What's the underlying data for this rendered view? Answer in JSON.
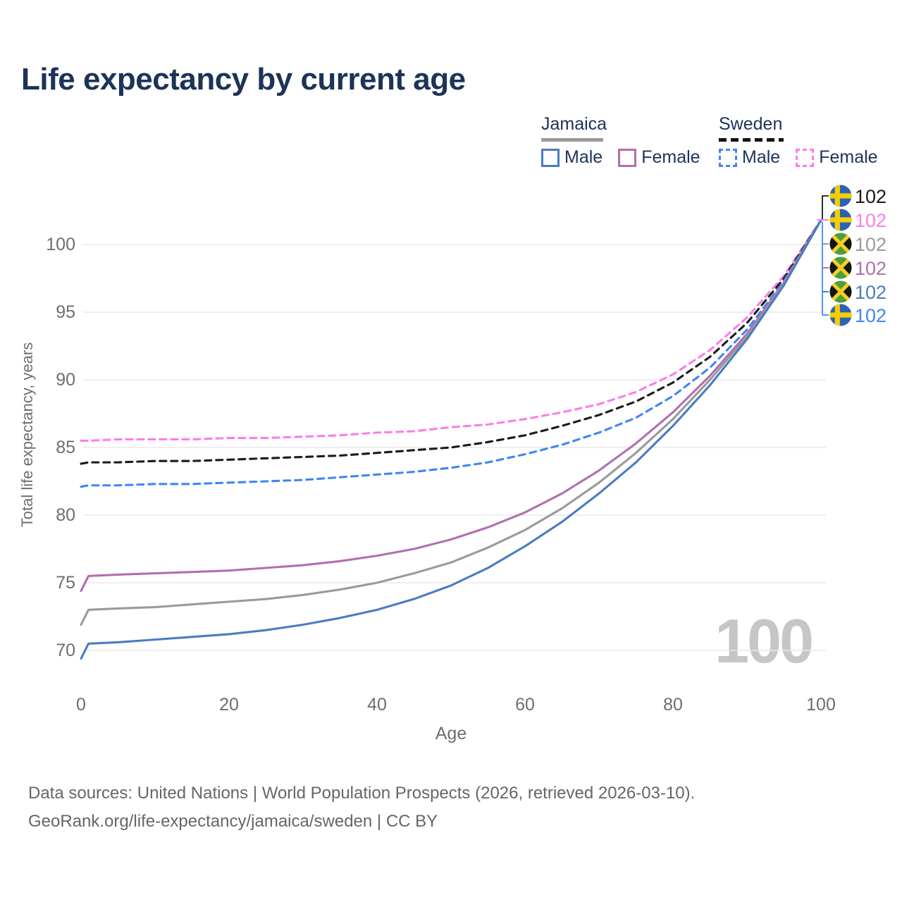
{
  "title": "Life expectancy by current age",
  "legend": {
    "jamaica": {
      "name": "Jamaica",
      "male": "Male",
      "female": "Female"
    },
    "sweden": {
      "name": "Sweden",
      "male": "Male",
      "female": "Female"
    }
  },
  "footer": {
    "line1": "Data sources: United Nations | World Population Prospects (2026, retrieved 2026-03-10).",
    "line2": "GeoRank.org/life-expectancy/jamaica/sweden | CC BY"
  },
  "colors": {
    "title_text": "#1d3357",
    "jamaica_male": "#4a7cc2",
    "jamaica_female": "#b06faf",
    "jamaica_all": "#9a9a9a",
    "sweden_male": "#3f86f5",
    "sweden_female": "#fb7de9",
    "sweden_all": "#1a1a1a",
    "grid": "#e8e8e8",
    "axis_text": "#6e6e6e",
    "watermark": "#c6c6c6",
    "footer_text": "#666666"
  },
  "chart_data": {
    "type": "line",
    "title": "Life expectancy by current age",
    "xlabel": "Age",
    "ylabel": "Total life expectancy, years",
    "xticks": [
      0,
      20,
      40,
      60,
      80,
      100
    ],
    "yticks": [
      70,
      75,
      80,
      85,
      90,
      95,
      100
    ],
    "xlim": [
      0,
      100
    ],
    "ylim": [
      67,
      103
    ],
    "grid": "horizontal-only",
    "legend_position": "top-right",
    "watermark": "100",
    "x": [
      0,
      1,
      5,
      10,
      15,
      20,
      25,
      30,
      35,
      40,
      45,
      50,
      55,
      60,
      65,
      70,
      75,
      80,
      85,
      90,
      95,
      100
    ],
    "series": [
      {
        "name": "Sweden Female",
        "country": "Sweden",
        "sex": "Female",
        "line": "dashed",
        "color": "#fb7de9",
        "values": [
          85.5,
          85.5,
          85.6,
          85.6,
          85.6,
          85.7,
          85.7,
          85.8,
          85.9,
          86.1,
          86.2,
          86.5,
          86.7,
          87.1,
          87.6,
          88.2,
          89.1,
          90.4,
          92.2,
          94.6,
          97.7,
          101.8
        ]
      },
      {
        "name": "Sweden",
        "country": "Sweden",
        "sex": "All",
        "line": "dashed",
        "color": "#1a1a1a",
        "values": [
          83.8,
          83.9,
          83.9,
          84.0,
          84.0,
          84.1,
          84.2,
          84.3,
          84.4,
          84.6,
          84.8,
          85.0,
          85.4,
          85.9,
          86.6,
          87.4,
          88.4,
          89.8,
          91.7,
          94.2,
          97.5,
          101.8
        ]
      },
      {
        "name": "Sweden Male",
        "country": "Sweden",
        "sex": "Male",
        "line": "dashed",
        "color": "#3f86f5",
        "values": [
          82.1,
          82.2,
          82.2,
          82.3,
          82.3,
          82.4,
          82.5,
          82.6,
          82.8,
          83.0,
          83.2,
          83.5,
          83.9,
          84.5,
          85.2,
          86.1,
          87.2,
          88.8,
          90.9,
          93.7,
          97.3,
          101.8
        ]
      },
      {
        "name": "Jamaica Female",
        "country": "Jamaica",
        "sex": "Female",
        "line": "solid",
        "color": "#b06faf",
        "values": [
          74.4,
          75.5,
          75.6,
          75.7,
          75.8,
          75.9,
          76.1,
          76.3,
          76.6,
          77.0,
          77.5,
          78.2,
          79.1,
          80.2,
          81.6,
          83.3,
          85.3,
          87.6,
          90.3,
          93.4,
          97.2,
          101.8
        ]
      },
      {
        "name": "Jamaica",
        "country": "Jamaica",
        "sex": "All",
        "line": "solid",
        "color": "#9a9a9a",
        "values": [
          71.9,
          73.0,
          73.1,
          73.2,
          73.4,
          73.6,
          73.8,
          74.1,
          74.5,
          75.0,
          75.7,
          76.5,
          77.6,
          78.9,
          80.5,
          82.4,
          84.6,
          87.1,
          90.0,
          93.2,
          97.1,
          101.8
        ]
      },
      {
        "name": "Jamaica Male",
        "country": "Jamaica",
        "sex": "Male",
        "line": "solid",
        "color": "#4a7cc2",
        "values": [
          69.4,
          70.5,
          70.6,
          70.8,
          71.0,
          71.2,
          71.5,
          71.9,
          72.4,
          73.0,
          73.8,
          74.8,
          76.1,
          77.7,
          79.5,
          81.6,
          83.9,
          86.6,
          89.6,
          93.0,
          97.0,
          101.8
        ]
      }
    ],
    "end_value_labels": [
      {
        "flag": "sweden-flag-icon",
        "text": "102",
        "color": "#1a1a1a",
        "series": "Sweden"
      },
      {
        "flag": "sweden-flag-icon",
        "text": "102",
        "color": "#fb7de9",
        "series": "Sweden Female"
      },
      {
        "flag": "jamaica-flag-icon",
        "text": "102",
        "color": "#9a9a9a",
        "series": "Jamaica"
      },
      {
        "flag": "jamaica-flag-icon",
        "text": "102",
        "color": "#b06faf",
        "series": "Jamaica Female"
      },
      {
        "flag": "jamaica-flag-icon",
        "text": "102",
        "color": "#4a7cc2",
        "series": "Jamaica Male"
      },
      {
        "flag": "sweden-flag-icon",
        "text": "102",
        "color": "#3f86f5",
        "series": "Sweden Male"
      }
    ]
  }
}
